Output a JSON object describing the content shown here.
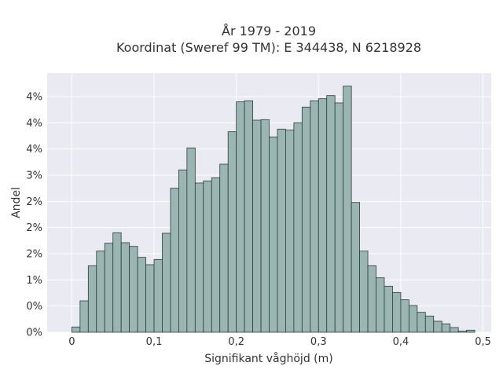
{
  "chart_data": {
    "type": "bar",
    "title": "År 1979 - 2019",
    "subtitle": "Koordinat (Sweref 99 TM): E 344438, N 6218928",
    "xlabel": "Signifikant våghöjd (m)",
    "ylabel": "Andel",
    "bin_width": 0.01,
    "bin_starts": [
      0.0,
      0.01,
      0.02,
      0.03,
      0.04,
      0.05,
      0.06,
      0.07,
      0.08,
      0.09,
      0.1,
      0.11,
      0.12,
      0.13,
      0.14,
      0.15,
      0.16,
      0.17,
      0.18,
      0.19,
      0.2,
      0.21,
      0.22,
      0.23,
      0.24,
      0.25,
      0.26,
      0.27,
      0.28,
      0.29,
      0.3,
      0.31,
      0.32,
      0.33,
      0.34,
      0.35,
      0.36,
      0.37,
      0.38,
      0.39,
      0.4,
      0.41,
      0.42,
      0.43,
      0.44,
      0.45,
      0.46,
      0.47,
      0.48
    ],
    "values": [
      0.001,
      0.006,
      0.0127,
      0.0155,
      0.017,
      0.019,
      0.0171,
      0.0164,
      0.0143,
      0.0129,
      0.0139,
      0.0189,
      0.0275,
      0.031,
      0.0352,
      0.0285,
      0.0289,
      0.0295,
      0.0321,
      0.0383,
      0.044,
      0.0442,
      0.0405,
      0.0406,
      0.0373,
      0.0388,
      0.0386,
      0.04,
      0.043,
      0.0442,
      0.0446,
      0.0452,
      0.0438,
      0.047,
      0.0248,
      0.0155,
      0.0127,
      0.0104,
      0.0088,
      0.0076,
      0.0062,
      0.0051,
      0.0038,
      0.0031,
      0.0021,
      0.0016,
      0.0009,
      0.0002,
      0.0004
    ],
    "xlim": [
      -0.03,
      0.51
    ],
    "ylim": [
      0,
      0.0495
    ],
    "xticks": [
      0,
      0.1,
      0.2,
      0.3,
      0.4,
      0.5
    ],
    "xtick_labels": [
      "0",
      "0,1",
      "0,2",
      "0,3",
      "0,4",
      "0,5"
    ],
    "yticks": [
      0,
      0.005,
      0.01,
      0.015,
      0.02,
      0.025,
      0.03,
      0.035,
      0.04,
      0.045
    ],
    "ytick_labels": [
      "0%",
      "0%",
      "1%",
      "2%",
      "2%",
      "2%",
      "3%",
      "4%",
      "4%",
      "4%"
    ],
    "grid": true,
    "colors": {
      "background": "#e9eaf2",
      "bar_fill": "#9bb5b3",
      "bar_stroke": "#2f3b3a",
      "grid": "#ffffff"
    }
  }
}
